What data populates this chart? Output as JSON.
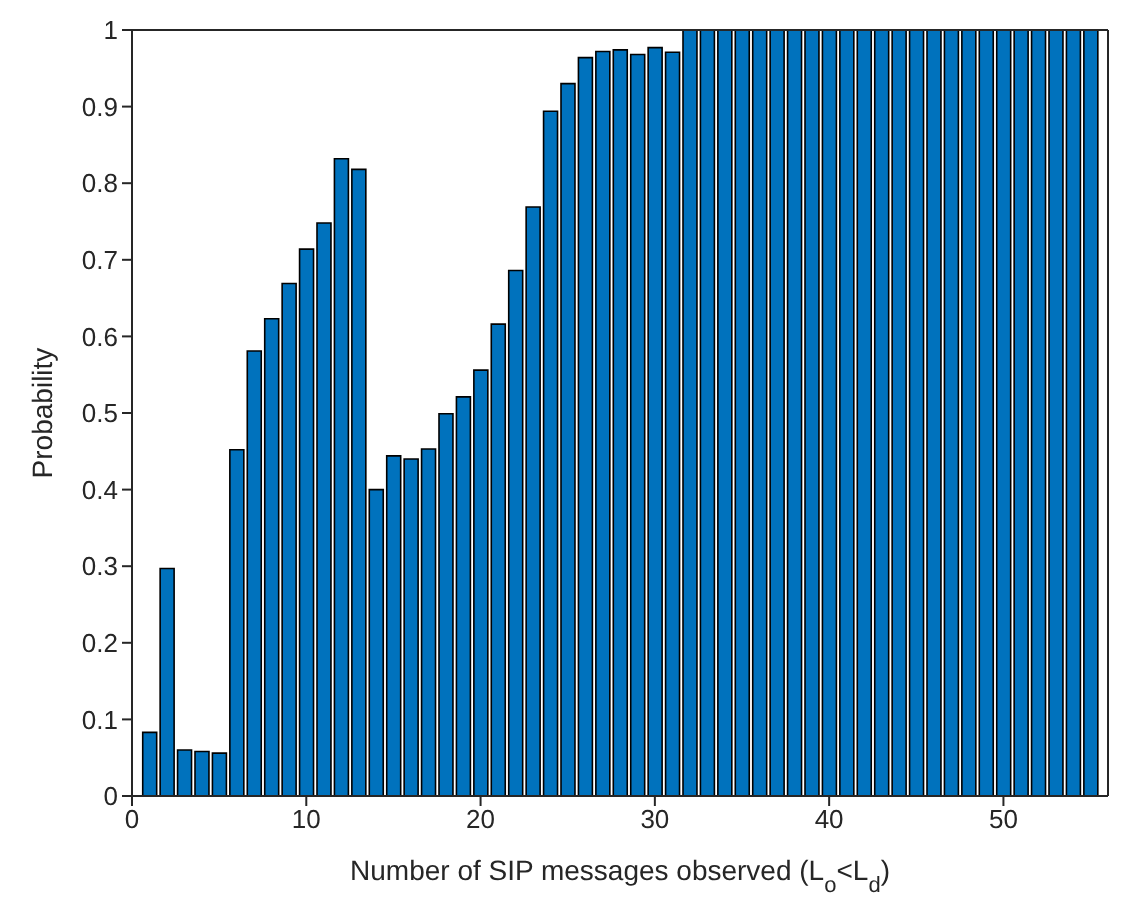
{
  "chart_data": {
    "type": "bar",
    "xlabel": "Number of SIP messages observed (L$_{o}$<L$_{d}$)",
    "ylabel": "Probability",
    "color": "#0072bd",
    "x": [
      1,
      2,
      3,
      4,
      5,
      6,
      7,
      8,
      9,
      10,
      11,
      12,
      13,
      14,
      15,
      16,
      17,
      18,
      19,
      20,
      21,
      22,
      23,
      24,
      25,
      26,
      27,
      28,
      29,
      30,
      31,
      32,
      33,
      34,
      35,
      36,
      37,
      38,
      39,
      40,
      41,
      42,
      43,
      44,
      45,
      46,
      47,
      48,
      49,
      50,
      51,
      52,
      53,
      54,
      55
    ],
    "values": [
      0.083,
      0.297,
      0.06,
      0.058,
      0.056,
      0.452,
      0.581,
      0.623,
      0.669,
      0.714,
      0.748,
      0.832,
      0.818,
      0.4,
      0.444,
      0.44,
      0.453,
      0.499,
      0.521,
      0.556,
      0.616,
      0.686,
      0.769,
      0.894,
      0.93,
      0.964,
      0.972,
      0.974,
      0.968,
      0.977,
      0.971,
      1,
      1,
      1,
      1,
      1,
      1,
      1,
      1,
      1,
      1,
      1,
      1,
      1,
      1,
      1,
      1,
      1,
      1,
      1,
      1,
      1,
      1,
      1,
      1
    ],
    "xlim": [
      0,
      56
    ],
    "xticks": [
      0,
      10,
      20,
      30,
      40,
      50
    ],
    "ylim": [
      0,
      1
    ],
    "yticks": [
      0,
      0.1,
      0.2,
      0.3,
      0.4,
      0.5,
      0.6,
      0.7,
      0.8,
      0.9,
      1
    ]
  }
}
